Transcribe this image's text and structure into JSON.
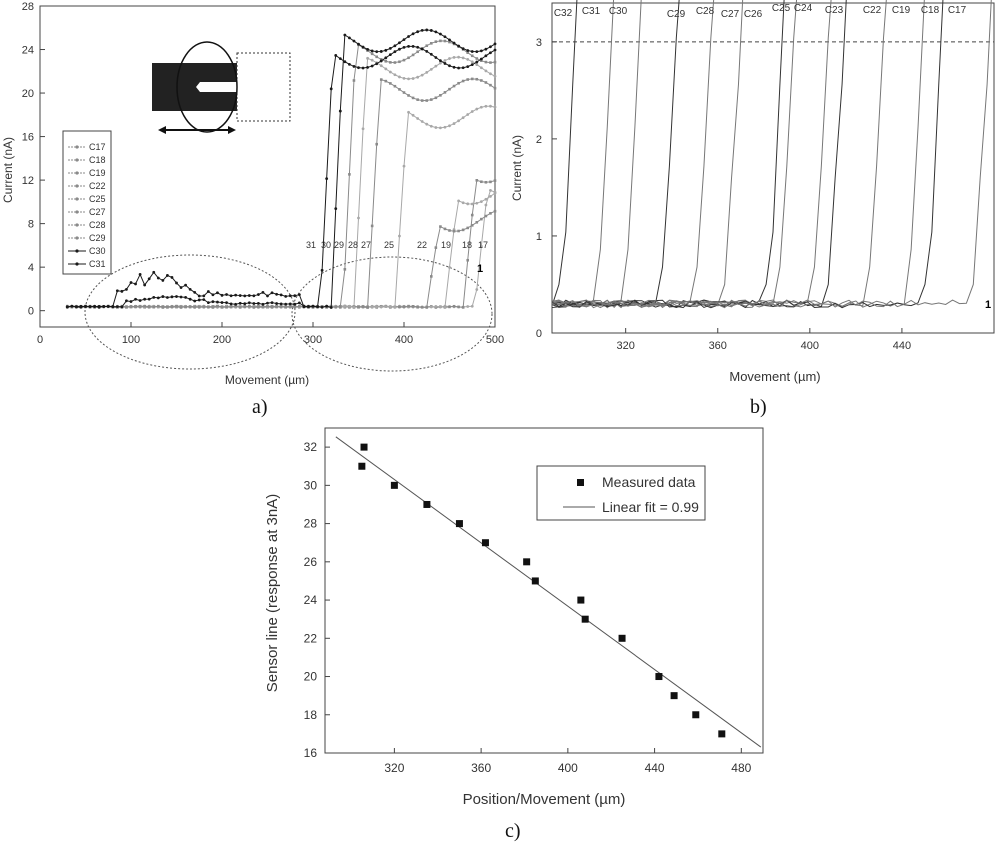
{
  "panel_labels": {
    "a": "a)",
    "b": "b)",
    "c": "c)"
  },
  "chart_data": [
    {
      "id": "a",
      "type": "line",
      "title": "",
      "xlabel": "Movement (µm)",
      "ylabel": "Current (nA)",
      "xlim": [
        0,
        500
      ],
      "ylim": [
        -1.5,
        28
      ],
      "xticks": [
        0,
        100,
        200,
        300,
        400,
        500
      ],
      "yticks": [
        0,
        4,
        8,
        12,
        16,
        20,
        24,
        28
      ],
      "legend_position": "left",
      "legend": [
        "C17",
        "C18",
        "C19",
        "C22",
        "C25",
        "C27",
        "C28",
        "C29",
        "C30",
        "C31"
      ],
      "curve_numbers": [
        "31",
        "30",
        "29",
        "28",
        "27",
        "25",
        "22",
        "19",
        "18",
        "17"
      ],
      "marker_label": "1",
      "series": [
        {
          "name": "C17",
          "rise_x": 478,
          "plateau": 11.5
        },
        {
          "name": "C18",
          "rise_x": 465,
          "plateau": 12.5
        },
        {
          "name": "C19",
          "rise_x": 445,
          "plateau": 10.5
        },
        {
          "name": "C22",
          "rise_x": 425,
          "plateau": 8.0
        },
        {
          "name": "C25",
          "rise_x": 390,
          "plateau": 17.5
        },
        {
          "name": "C27",
          "rise_x": 360,
          "plateau": 20.0
        },
        {
          "name": "C28",
          "rise_x": 345,
          "plateau": 22.0
        },
        {
          "name": "C29",
          "rise_x": 333,
          "plateau": 23.5
        },
        {
          "name": "C30",
          "rise_x": 320,
          "plateau": 24.5
        },
        {
          "name": "C31",
          "rise_x": 308,
          "plateau": 23.0,
          "bump": 3.3
        }
      ]
    },
    {
      "id": "b",
      "type": "line",
      "title": "",
      "xlabel": "Movement (µm)",
      "ylabel": "Current (nA)",
      "xlim": [
        288,
        480
      ],
      "ylim": [
        0,
        3.4
      ],
      "xticks": [
        320,
        360,
        400,
        440
      ],
      "yticks": [
        0,
        1,
        2,
        3
      ],
      "threshold": 3,
      "marker_label": "1",
      "top_labels": [
        "C32",
        "C31",
        "C30",
        "C29",
        "C28",
        "C27",
        "C26",
        "C25",
        "C24",
        "C23",
        "C22",
        "C19",
        "C18",
        "C17"
      ],
      "series": [
        {
          "name": "C32",
          "rise_x": 290
        },
        {
          "name": "C31",
          "rise_x": 306
        },
        {
          "name": "C30",
          "rise_x": 318
        },
        {
          "name": "C29",
          "rise_x": 334
        },
        {
          "name": "C28",
          "rise_x": 349
        },
        {
          "name": "C27",
          "rise_x": 362
        },
        {
          "name": "C26",
          "rise_x": 380
        },
        {
          "name": "C25",
          "rise_x": 385
        },
        {
          "name": "C24",
          "rise_x": 400
        },
        {
          "name": "C23",
          "rise_x": 407
        },
        {
          "name": "C22",
          "rise_x": 424
        },
        {
          "name": "C19",
          "rise_x": 441
        },
        {
          "name": "C18",
          "rise_x": 449
        },
        {
          "name": "C17",
          "rise_x": 470
        }
      ]
    },
    {
      "id": "c",
      "type": "scatter",
      "title": "",
      "xlabel": "Position/Movement (µm)",
      "ylabel": "Sensor line (response at 3nA)",
      "xlim": [
        288,
        490
      ],
      "ylim": [
        16,
        33
      ],
      "xticks": [
        320,
        360,
        400,
        440,
        480
      ],
      "yticks": [
        16,
        18,
        20,
        22,
        24,
        26,
        28,
        30,
        32
      ],
      "legend_position": "top-right",
      "legend": {
        "points": "Measured data",
        "fit": "Linear fit = 0.99"
      },
      "points": [
        {
          "x": 306,
          "y": 32
        },
        {
          "x": 305,
          "y": 31
        },
        {
          "x": 320,
          "y": 30
        },
        {
          "x": 335,
          "y": 29
        },
        {
          "x": 350,
          "y": 28
        },
        {
          "x": 362,
          "y": 27
        },
        {
          "x": 381,
          "y": 26
        },
        {
          "x": 385,
          "y": 25
        },
        {
          "x": 406,
          "y": 24
        },
        {
          "x": 408,
          "y": 23
        },
        {
          "x": 425,
          "y": 22
        },
        {
          "x": 442,
          "y": 20
        },
        {
          "x": 449,
          "y": 19
        },
        {
          "x": 459,
          "y": 18
        },
        {
          "x": 471,
          "y": 17
        }
      ],
      "fit": {
        "slope": -0.0828,
        "intercept": 56.8
      }
    }
  ]
}
